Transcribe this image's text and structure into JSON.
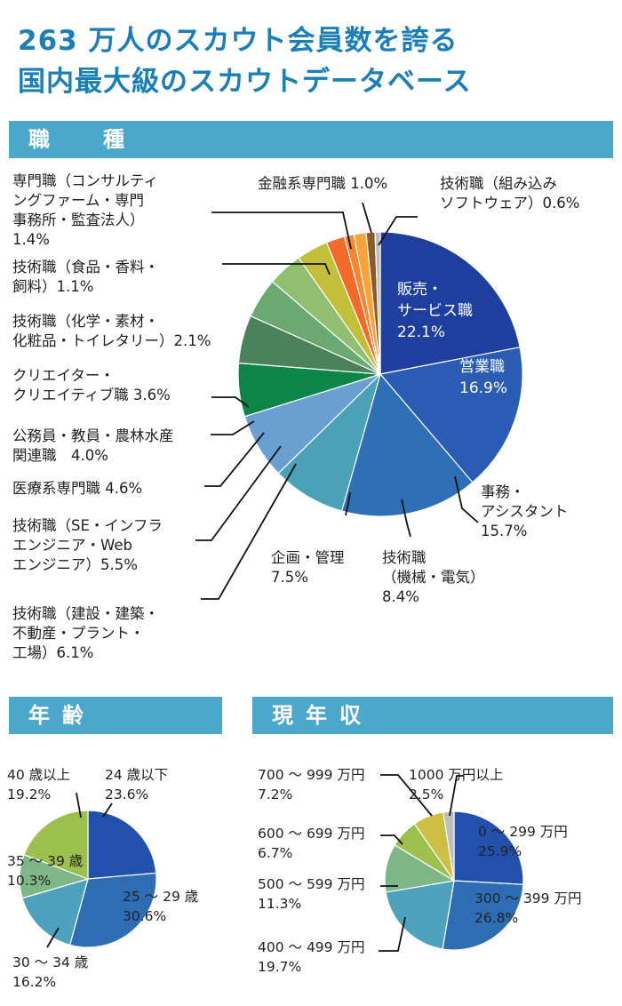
{
  "header": {
    "title_line1": "263 万人のスカウト会員数を誇る",
    "title_line2": "国内最大級のスカウトデータベース"
  },
  "sections": {
    "occupation": "職　種",
    "age": "年齢",
    "income": "現年収"
  },
  "chart_data": [
    {
      "id": "occupation",
      "type": "pie",
      "title": "職　種",
      "slices": [
        {
          "label": "販売・サービス職",
          "value": 22.1,
          "color": "#1f3fa0"
        },
        {
          "label": "営業職",
          "value": 16.9,
          "color": "#2a5cb3"
        },
        {
          "label": "事務・アシスタント",
          "value": 15.7,
          "color": "#2f6fb6"
        },
        {
          "label": "技術職（機械・電気）",
          "value": 8.4,
          "color": "#49a2b8"
        },
        {
          "label": "企画・管理",
          "value": 7.5,
          "color": "#6a9fd1"
        },
        {
          "label": "技術職（建設・建築・不動産・プラント・工場）",
          "value": 6.1,
          "color": "#0c8548"
        },
        {
          "label": "技術職（SE・インフラエンジニア・Webエンジニア）",
          "value": 5.5,
          "color": "#4a8259"
        },
        {
          "label": "医療系専門職",
          "value": 4.6,
          "color": "#6aaa72"
        },
        {
          "label": "公務員・教員・農林水産関連職",
          "value": 4.0,
          "color": "#90bf72"
        },
        {
          "label": "クリエイター・クリエイティブ職",
          "value": 3.6,
          "color": "#c4bf3b"
        },
        {
          "label": "技術職（化学・素材・化粧品・トイレタリー）",
          "value": 2.1,
          "color": "#f36a2b"
        },
        {
          "label": "技術職（食品・香料・飼料）",
          "value": 1.1,
          "color": "#f4872f"
        },
        {
          "label": "専門職（コンサルティングファーム・専門事務所・監査法人）",
          "value": 1.4,
          "color": "#f7a337"
        },
        {
          "label": "金融系専門職",
          "value": 1.0,
          "color": "#8b5a2b"
        },
        {
          "label": "技術職（組み込みソフトウェア）",
          "value": 0.6,
          "color": "#bdbdbd"
        }
      ],
      "labels": {
        "販売": [
          "販売・",
          "サービス職",
          "22.1%"
        ],
        "営業": [
          "営業職",
          "16.9%"
        ],
        "事務": [
          "事務・",
          "アシスタント",
          "15.7%"
        ],
        "機械": [
          "技術職",
          "（機械・電気）",
          "8.4%"
        ],
        "企画": [
          "企画・管理",
          "7.5%"
        ],
        "建設": [
          "技術職（建設・建築・",
          "不動産・プラント・",
          "工場）6.1%"
        ],
        "SE": [
          "技術職（SE・インフラ",
          "エンジニア・Web",
          "エンジニア）5.5%"
        ],
        "医療": [
          "医療系専門職 4.6%"
        ],
        "公務": [
          "公務員・教員・農林水産",
          "関連職　4.0%"
        ],
        "クリ": [
          "クリエイター・",
          "クリエイティブ職 3.6%"
        ],
        "化学": [
          "技術職（化学・素材・",
          "化粧品・トイレタリー）2.1%"
        ],
        "食品": [
          "技術職（食品・香料・",
          "飼料）1.1%"
        ],
        "専門": [
          "専門職（コンサルティ",
          "ングファーム・専門",
          "事務所・監査法人）",
          "1.4%"
        ],
        "金融": [
          "金融系専門職 1.0%"
        ],
        "組込": [
          "技術職（組み込み",
          "ソフトウェア）0.6%"
        ]
      }
    },
    {
      "id": "age",
      "type": "pie",
      "title": "年齢",
      "slices": [
        {
          "label": "24 歳以下",
          "value": 23.6,
          "color": "#2450ad"
        },
        {
          "label": "25 〜 29 歳",
          "value": 30.6,
          "color": "#2e6db4"
        },
        {
          "label": "30 〜 34 歳",
          "value": 16.2,
          "color": "#4ea2bd"
        },
        {
          "label": "35 〜 39 歳",
          "value": 10.3,
          "color": "#7db687"
        },
        {
          "label": "40 歳以上",
          "value": 19.2,
          "color": "#9dbf4c"
        }
      ],
      "labels": {
        "a1": [
          "24 歳以下",
          "23.6%"
        ],
        "a2": [
          "25 〜 29 歳",
          "30.6%"
        ],
        "a3": [
          "30 〜 34 歳",
          "16.2%"
        ],
        "a4": [
          "35 〜 39 歳",
          "10.3%"
        ],
        "a5": [
          "40 歳以上",
          "19.2%"
        ]
      }
    },
    {
      "id": "income",
      "type": "pie",
      "title": "現年収",
      "slices": [
        {
          "label": "0 〜 299 万円",
          "value": 25.9,
          "color": "#2450ad"
        },
        {
          "label": "300 〜 399 万円",
          "value": 26.8,
          "color": "#2e6db4"
        },
        {
          "label": "400 〜 499 万円",
          "value": 19.7,
          "color": "#4ea2bd"
        },
        {
          "label": "500 〜 599 万円",
          "value": 11.3,
          "color": "#7db687"
        },
        {
          "label": "600 〜 699 万円",
          "value": 6.7,
          "color": "#9dbf4c"
        },
        {
          "label": "700 〜 999 万円",
          "value": 7.2,
          "color": "#cdbf45"
        },
        {
          "label": "1000 万円以上",
          "value": 2.5,
          "color": "#bdbdbd"
        }
      ],
      "labels": {
        "i1": [
          "0 〜 299 万円",
          "25.9%"
        ],
        "i2": [
          "300 〜 399 万円",
          "26.8%"
        ],
        "i3": [
          "400 〜 499 万円",
          "19.7%"
        ],
        "i4": [
          "500 〜 599 万円",
          "11.3%"
        ],
        "i5": [
          "600 〜 699 万円",
          "6.7%"
        ],
        "i6": [
          "700 〜 999 万円",
          "7.2%"
        ],
        "i7": [
          "1000 万円以上",
          "2.5%"
        ]
      }
    }
  ]
}
